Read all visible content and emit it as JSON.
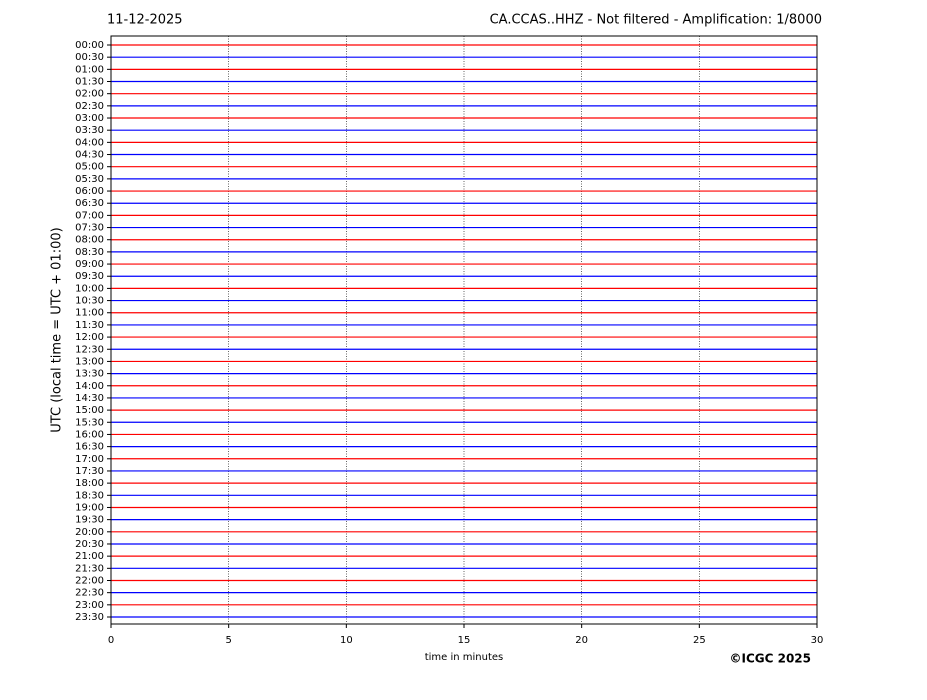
{
  "chart_data": {
    "type": "helicorder",
    "title": "11-12-2025",
    "subtitle": "CA.CCAS..HHZ - Not filtered - Amplification: 1/8000",
    "x_label": "time in minutes",
    "y_label": "UTC (local time = UTC + 01:00)",
    "credit": "©ICGC 2025",
    "categories": [
      "00:00",
      "00:30",
      "01:00",
      "01:30",
      "02:00",
      "02:30",
      "03:00",
      "03:30",
      "04:00",
      "04:30",
      "05:00",
      "05:30",
      "06:00",
      "06:30",
      "07:00",
      "07:30",
      "08:00",
      "08:30",
      "09:00",
      "09:30",
      "10:00",
      "10:30",
      "11:00",
      "11:30",
      "12:00",
      "12:30",
      "13:00",
      "13:30",
      "14:00",
      "14:30",
      "15:00",
      "15:30",
      "16:00",
      "16:30",
      "17:00",
      "17:30",
      "18:00",
      "18:30",
      "19:00",
      "19:30",
      "20:00",
      "20:30",
      "21:00",
      "21:30",
      "22:00",
      "22:30",
      "23:00",
      "23:30"
    ],
    "colors": [
      "#ff0000",
      "#0000ff"
    ],
    "xlim": [
      0,
      30
    ],
    "xticks": [
      0,
      5,
      10,
      15,
      20,
      25,
      30
    ],
    "grid": true
  }
}
